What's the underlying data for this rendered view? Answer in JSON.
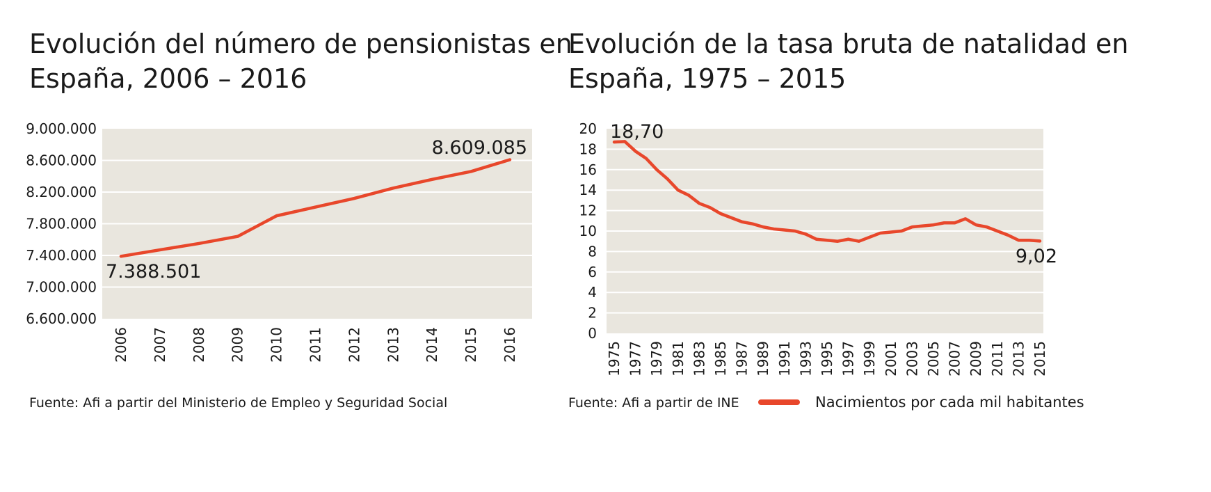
{
  "colors": {
    "line": "#e8472b",
    "plot_bg": "#e9e6de",
    "grid": "#ffffff"
  },
  "left": {
    "title_line1": "Evolución del número de pensionistas en",
    "title_line2": "España, 2006 – 2016",
    "source": "Fuente: Afi a partir del Ministerio de Empleo y Seguridad Social"
  },
  "right": {
    "title_line1": "Evolución de la tasa bruta de natalidad en",
    "title_line2": "España, 1975 – 2015",
    "source": "Fuente: Afi a partir de INE",
    "legend_label": "Nacimientos por cada mil habitantes"
  },
  "chart_data": [
    {
      "type": "line",
      "title": "Evolución del número de pensionistas en España, 2006 – 2016",
      "xlabel": "",
      "ylabel": "",
      "x": [
        "2006",
        "2007",
        "2008",
        "2009",
        "2010",
        "2011",
        "2012",
        "2013",
        "2014",
        "2015",
        "2016"
      ],
      "y_tick_labels": [
        "9.000.000",
        "8.600.000",
        "8.200.000",
        "7.800.000",
        "7.400.000",
        "7.000.000",
        "6.600.000"
      ],
      "ylim": [
        6600000,
        9000000
      ],
      "grid": true,
      "series": [
        {
          "values": [
            7388501,
            7470000,
            7550000,
            7640000,
            7900000,
            8010000,
            8120000,
            8250000,
            8360000,
            8460000,
            8609085
          ]
        }
      ],
      "annotations": [
        {
          "x": "2006",
          "text": "7.388.501"
        },
        {
          "x": "2016",
          "text": "8.609.085"
        }
      ]
    },
    {
      "type": "line",
      "title": "Evolución de la tasa bruta de natalidad en España, 1975 – 2015",
      "xlabel": "",
      "ylabel": "",
      "x": [
        1975,
        1976,
        1977,
        1978,
        1979,
        1980,
        1981,
        1982,
        1983,
        1984,
        1985,
        1986,
        1987,
        1988,
        1989,
        1990,
        1991,
        1992,
        1993,
        1994,
        1995,
        1996,
        1997,
        1998,
        1999,
        2000,
        2001,
        2002,
        2003,
        2004,
        2005,
        2006,
        2007,
        2008,
        2009,
        2010,
        2011,
        2012,
        2013,
        2014,
        2015
      ],
      "x_tick_labels": [
        "1975",
        "1977",
        "1979",
        "1981",
        "1983",
        "1985",
        "1987",
        "1989",
        "1991",
        "1993",
        "1995",
        "1997",
        "1999",
        "2001",
        "2003",
        "2005",
        "2007",
        "2009",
        "2011",
        "2013",
        "2015"
      ],
      "y_tick_labels": [
        "20",
        "18",
        "16",
        "14",
        "12",
        "10",
        "8",
        "6",
        "4",
        "2",
        "0"
      ],
      "ylim": [
        0,
        20
      ],
      "grid": true,
      "legend_position": "bottom-right",
      "series": [
        {
          "name": "Nacimientos por cada mil habitantes",
          "values": [
            18.7,
            18.75,
            17.8,
            17.1,
            16.0,
            15.1,
            14.0,
            13.5,
            12.7,
            12.3,
            11.7,
            11.3,
            10.9,
            10.7,
            10.4,
            10.2,
            10.1,
            10.0,
            9.7,
            9.2,
            9.1,
            9.0,
            9.2,
            9.0,
            9.4,
            9.8,
            9.9,
            10.0,
            10.4,
            10.5,
            10.6,
            10.8,
            10.8,
            11.2,
            10.6,
            10.4,
            10.0,
            9.6,
            9.1,
            9.1,
            9.02
          ]
        }
      ],
      "annotations": [
        {
          "x": 1975,
          "text": "18,70"
        },
        {
          "x": 2015,
          "text": "9,02"
        }
      ]
    }
  ]
}
